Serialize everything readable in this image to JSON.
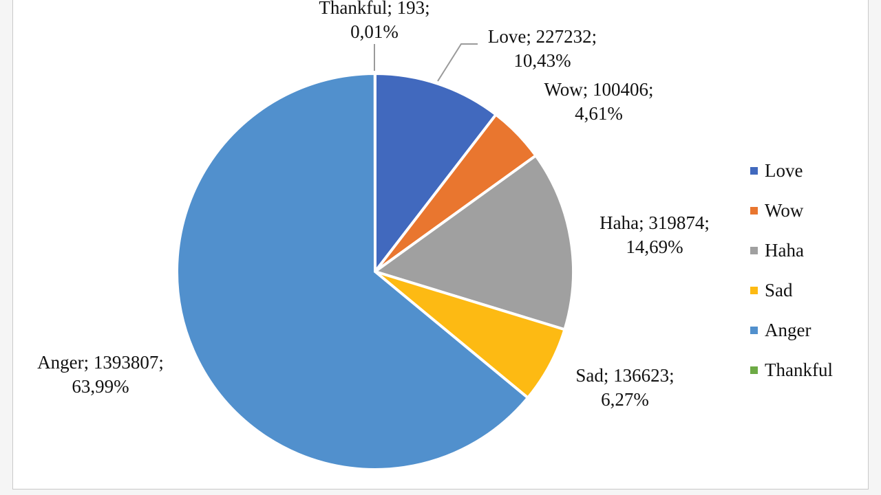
{
  "chart_data": {
    "type": "pie",
    "title": "",
    "slices": [
      {
        "label": "Love",
        "value": 227232,
        "percent": "10,43%",
        "color": "#4169BE"
      },
      {
        "label": "Wow",
        "value": 100406,
        "percent": "4,61%",
        "color": "#E9762F"
      },
      {
        "label": "Haha",
        "value": 319874,
        "percent": "14,69%",
        "color": "#A0A0A0"
      },
      {
        "label": "Sad",
        "value": 136623,
        "percent": "6,27%",
        "color": "#FDBA13"
      },
      {
        "label": "Anger",
        "value": 1393807,
        "percent": "63,99%",
        "color": "#5190CD"
      },
      {
        "label": "Thankful",
        "value": 193,
        "percent": "0,01%",
        "color": "#6DAA45"
      }
    ],
    "data_labels": [
      {
        "series": "Thankful",
        "line1": "Thankful; 193;",
        "line2": "0,01%"
      },
      {
        "series": "Love",
        "line1": "Love; 227232;",
        "line2": "10,43%"
      },
      {
        "series": "Wow",
        "line1": "Wow; 100406;",
        "line2": "4,61%"
      },
      {
        "series": "Haha",
        "line1": "Haha; 319874;",
        "line2": "14,69%"
      },
      {
        "series": "Sad",
        "line1": "Sad; 136623;",
        "line2": "6,27%"
      },
      {
        "series": "Anger",
        "line1": "Anger; 1393807;",
        "line2": "63,99%"
      }
    ],
    "legend": {
      "position": "right",
      "entries": [
        "Love",
        "Wow",
        "Haha",
        "Sad",
        "Anger",
        "Thankful"
      ]
    }
  }
}
